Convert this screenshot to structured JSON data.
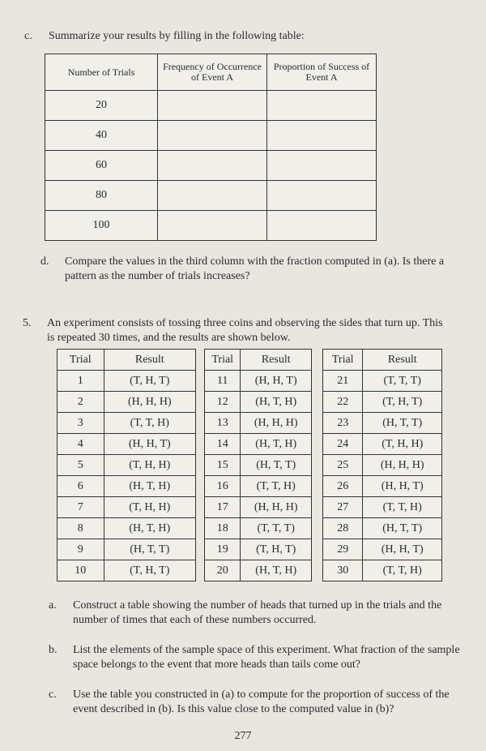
{
  "part_c": {
    "label": "c.",
    "text": "Summarize your results by filling in the following table:"
  },
  "summary_table": {
    "headers": [
      "Number of Trials",
      "Frequency of Occurrence of Event A",
      "Proportion of Success of Event A"
    ],
    "number_of_trials": [
      20,
      40,
      60,
      80,
      100
    ]
  },
  "part_d": {
    "label": "d.",
    "text": "Compare the values in the third column with the fraction computed in (a). Is there a pattern as the number of trials increases?"
  },
  "problem_5": {
    "number": "5.",
    "text": "An experiment consists of tossing three coins and observing the sides that turn up. This is repeated 30 times, and the results are shown below."
  },
  "results_tables": [
    {
      "headers": [
        "Trial",
        "Result"
      ],
      "rows": [
        [
          1,
          "(T, H, T)"
        ],
        [
          2,
          "(H, H, H)"
        ],
        [
          3,
          "(T, T, H)"
        ],
        [
          4,
          "(H, H, T)"
        ],
        [
          5,
          "(T, H, H)"
        ],
        [
          6,
          "(H, T, H)"
        ],
        [
          7,
          "(T, H, H)"
        ],
        [
          8,
          "(H, T, H)"
        ],
        [
          9,
          "(H, T, T)"
        ],
        [
          10,
          "(T, H, T)"
        ]
      ]
    },
    {
      "headers": [
        "Trial",
        "Result"
      ],
      "rows": [
        [
          11,
          "(H, H, T)"
        ],
        [
          12,
          "(H, T, H)"
        ],
        [
          13,
          "(H, H, H)"
        ],
        [
          14,
          "(H, T, H)"
        ],
        [
          15,
          "(H, T, T)"
        ],
        [
          16,
          "(T, T, H)"
        ],
        [
          17,
          "(H, H, H)"
        ],
        [
          18,
          "(T, T, T)"
        ],
        [
          19,
          "(T, H, T)"
        ],
        [
          20,
          "(H, T, H)"
        ]
      ]
    },
    {
      "headers": [
        "Trial",
        "Result"
      ],
      "rows": [
        [
          21,
          "(T, T, T)"
        ],
        [
          22,
          "(T, H, T)"
        ],
        [
          23,
          "(H, T, T)"
        ],
        [
          24,
          "(T, H, H)"
        ],
        [
          25,
          "(H, H, H)"
        ],
        [
          26,
          "(H, H, T)"
        ],
        [
          27,
          "(T, T, H)"
        ],
        [
          28,
          "(H, T, T)"
        ],
        [
          29,
          "(H, H, T)"
        ],
        [
          30,
          "(T, T, H)"
        ]
      ]
    }
  ],
  "questions": [
    {
      "label": "a.",
      "text": "Construct a table showing the number of heads that turned up in the trials and the number of times that each of these numbers occurred."
    },
    {
      "label": "b.",
      "text": "List the elements of the sample space of this experiment. What fraction of the sample space belongs to the event that more heads than tails come out?"
    },
    {
      "label": "c.",
      "text": "Use the table you constructed in (a) to compute for the proportion of success of the event described in (b). Is this value close to the computed value in (b)?"
    }
  ],
  "page_number": 277
}
